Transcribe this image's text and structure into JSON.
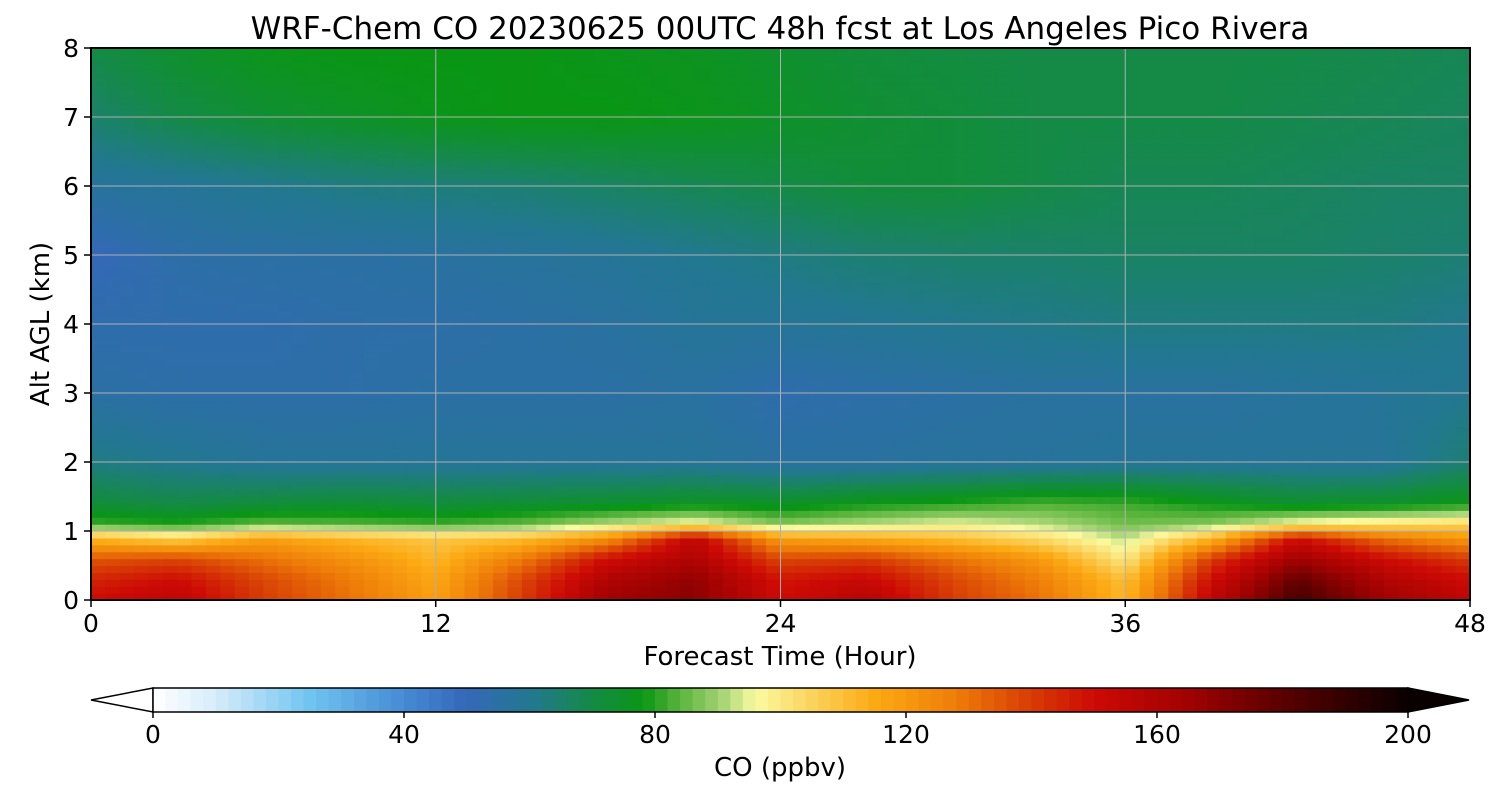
{
  "chart_data": {
    "type": "heatmap",
    "title": "WRF-Chem CO  20230625 00UTC 48h fcst at Los Angeles Pico Rivera",
    "xlabel": "Forecast Time (Hour)",
    "ylabel": "Alt AGL (km)",
    "xlim": [
      0,
      48
    ],
    "ylim": [
      0,
      8
    ],
    "x_ticks": [
      "0",
      "12",
      "24",
      "36",
      "48"
    ],
    "y_ticks": [
      "0",
      "1",
      "2",
      "3",
      "4",
      "5",
      "6",
      "7",
      "8"
    ],
    "grid": true,
    "colorbar": {
      "label": "CO  (ppbv)",
      "min": 0,
      "max": 200,
      "ticks": [
        "0",
        "40",
        "80",
        "120",
        "160",
        "200"
      ],
      "extend": "both"
    },
    "hours": [
      0,
      3,
      6,
      9,
      12,
      15,
      18,
      21,
      24,
      27,
      30,
      33,
      36,
      39,
      42,
      45,
      48
    ],
    "altitudes_km": [
      0.0,
      0.3,
      0.6,
      0.9,
      1.1,
      1.4,
      2.0,
      3.0,
      4.0,
      5.0,
      6.0,
      7.0,
      8.0
    ],
    "co_ppbv": [
      [
        150,
        155,
        140,
        130,
        118,
        140,
        165,
        170,
        150,
        158,
        140,
        130,
        112,
        155,
        185,
        165,
        155
      ],
      [
        145,
        150,
        138,
        128,
        116,
        138,
        160,
        168,
        148,
        152,
        138,
        127,
        110,
        150,
        178,
        160,
        150
      ],
      [
        135,
        138,
        130,
        122,
        112,
        128,
        150,
        160,
        138,
        140,
        130,
        120,
        100,
        140,
        165,
        150,
        140
      ],
      [
        112,
        105,
        118,
        112,
        108,
        110,
        122,
        155,
        118,
        115,
        110,
        103,
        92,
        112,
        150,
        130,
        120
      ],
      [
        82,
        80,
        85,
        84,
        82,
        85,
        92,
        98,
        88,
        92,
        96,
        92,
        86,
        88,
        98,
        102,
        105
      ],
      [
        72,
        70,
        72,
        73,
        72,
        73,
        74,
        76,
        75,
        78,
        80,
        83,
        82,
        78,
        74,
        75,
        78
      ],
      [
        62,
        60,
        58,
        58,
        58,
        58,
        58,
        58,
        56,
        56,
        57,
        57,
        58,
        58,
        58,
        58,
        64
      ],
      [
        55,
        54,
        54,
        54,
        55,
        55,
        55,
        56,
        53,
        54,
        55,
        56,
        56,
        56,
        57,
        58,
        60
      ],
      [
        53,
        53,
        53,
        54,
        54,
        55,
        56,
        58,
        58,
        59,
        60,
        61,
        62,
        62,
        62,
        62,
        60
      ],
      [
        50,
        54,
        55,
        55,
        56,
        57,
        58,
        60,
        62,
        64,
        65,
        65,
        66,
        66,
        66,
        65,
        64
      ],
      [
        57,
        58,
        60,
        62,
        63,
        64,
        66,
        68,
        70,
        72,
        72,
        70,
        68,
        68,
        67,
        66,
        66
      ],
      [
        65,
        70,
        73,
        75,
        77,
        78,
        78,
        77,
        75,
        73,
        72,
        70,
        70,
        70,
        69,
        68,
        67
      ],
      [
        70,
        74,
        77,
        78,
        78,
        78,
        77,
        76,
        74,
        72,
        71,
        70,
        70,
        70,
        70,
        69,
        68
      ]
    ]
  }
}
